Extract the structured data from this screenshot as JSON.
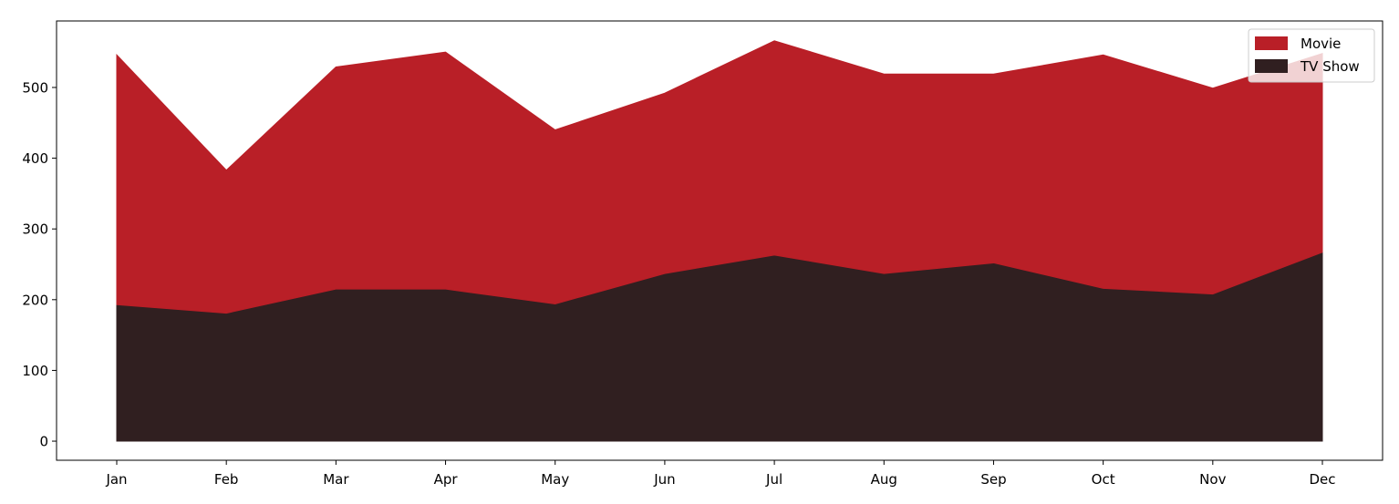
{
  "chart_data": {
    "type": "area",
    "stacked": true,
    "title": "",
    "xlabel": "",
    "ylabel": "",
    "categories": [
      "Jan",
      "Feb",
      "Mar",
      "Apr",
      "May",
      "Jun",
      "Jul",
      "Aug",
      "Sep",
      "Oct",
      "Nov",
      "Dec"
    ],
    "series": [
      {
        "name": "TV Show",
        "color": "#301f20",
        "values": [
          193,
          181,
          215,
          215,
          194,
          237,
          263,
          237,
          252,
          216,
          208,
          267
        ]
      },
      {
        "name": "Movie",
        "color": "#b91f27",
        "values": [
          353,
          202,
          314,
          335,
          246,
          255,
          303,
          282,
          267,
          330,
          291,
          281
        ]
      }
    ],
    "stack_totals": [
      546,
      383,
      529,
      550,
      440,
      492,
      566,
      519,
      519,
      546,
      499,
      548
    ],
    "ylim": [
      -27,
      594
    ],
    "yticks": [
      0,
      100,
      200,
      300,
      400,
      500
    ],
    "grid": false,
    "legend": {
      "position": "top-right",
      "entries": [
        "Movie",
        "TV Show"
      ]
    }
  }
}
